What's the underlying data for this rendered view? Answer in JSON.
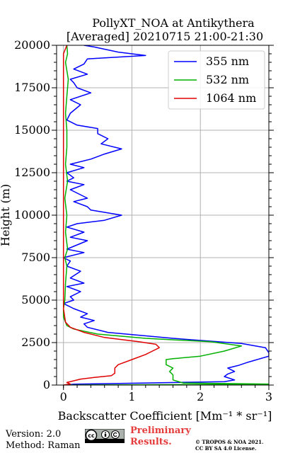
{
  "chart_data": {
    "type": "line",
    "title": "PollyXT_NOA at Antikythera",
    "subtitle": "[Averaged] 20210715 21:00-21:30",
    "xlabel": "Backscatter Coefficient [Mm⁻¹ * sr⁻¹]",
    "ylabel": "Height (m)",
    "xlim": [
      -0.1,
      3
    ],
    "ylim": [
      0,
      20000
    ],
    "x_ticks": [
      0,
      1,
      2,
      3
    ],
    "y_ticks": [
      0,
      2500,
      5000,
      7500,
      10000,
      12500,
      15000,
      17500,
      20000
    ],
    "grid": true,
    "legend_position": "top-right",
    "series": [
      {
        "name": "355 nm",
        "color": "#0000ff",
        "points": [
          [
            0.05,
            0
          ],
          [
            0.15,
            50
          ],
          [
            1.2,
            120
          ],
          [
            2.35,
            200
          ],
          [
            2.5,
            300
          ],
          [
            2.35,
            500
          ],
          [
            2.4,
            650
          ],
          [
            2.5,
            800
          ],
          [
            2.4,
            1000
          ],
          [
            2.55,
            1150
          ],
          [
            2.7,
            1350
          ],
          [
            3.0,
            1700
          ],
          [
            3.0,
            1900
          ],
          [
            2.95,
            2200
          ],
          [
            2.6,
            2450
          ],
          [
            1.6,
            2750
          ],
          [
            0.65,
            3100
          ],
          [
            0.35,
            3400
          ],
          [
            0.3,
            3600
          ],
          [
            0.45,
            3800
          ],
          [
            0.25,
            4000
          ],
          [
            0.35,
            4200
          ],
          [
            0.15,
            4500
          ],
          [
            0.05,
            4700
          ],
          [
            0.0,
            4800
          ],
          [
            0.15,
            5000
          ],
          [
            0.1,
            5200
          ],
          [
            0.25,
            5500
          ],
          [
            0.05,
            5800
          ],
          [
            0.3,
            6000
          ],
          [
            0.1,
            6300
          ],
          [
            0.25,
            6700
          ],
          [
            0.05,
            7000
          ],
          [
            0.1,
            7300
          ],
          [
            0.0,
            7500
          ],
          [
            0.3,
            7800
          ],
          [
            0.05,
            8000
          ],
          [
            0.35,
            8500
          ],
          [
            0.1,
            8700
          ],
          [
            0.3,
            9000
          ],
          [
            0.05,
            9300
          ],
          [
            0.2,
            9500
          ],
          [
            0.6,
            9700
          ],
          [
            0.85,
            10000
          ],
          [
            0.4,
            10300
          ],
          [
            0.35,
            10500
          ],
          [
            0.15,
            10800
          ],
          [
            0.35,
            11000
          ],
          [
            0.1,
            11500
          ],
          [
            0.3,
            11800
          ],
          [
            0.05,
            12000
          ],
          [
            0.15,
            12200
          ],
          [
            0.05,
            12500
          ],
          [
            0.3,
            12800
          ],
          [
            0.1,
            13000
          ],
          [
            0.4,
            13300
          ],
          [
            0.6,
            13600
          ],
          [
            0.85,
            13900
          ],
          [
            0.55,
            14200
          ],
          [
            0.65,
            14500
          ],
          [
            0.5,
            14800
          ],
          [
            0.5,
            15100
          ],
          [
            0.2,
            15300
          ],
          [
            0.05,
            15600
          ],
          [
            0.1,
            16000
          ],
          [
            0.25,
            16500
          ],
          [
            0.1,
            16800
          ],
          [
            0.4,
            17200
          ],
          [
            0.2,
            17500
          ],
          [
            0.15,
            17800
          ],
          [
            0.1,
            18000
          ],
          [
            0.35,
            18300
          ],
          [
            0.15,
            18600
          ],
          [
            0.3,
            18900
          ],
          [
            0.35,
            19200
          ],
          [
            1.2,
            19400
          ],
          [
            0.8,
            19600
          ],
          [
            0.45,
            19900
          ],
          [
            0.3,
            20000
          ]
        ]
      },
      {
        "name": "532 nm",
        "color": "#00b000",
        "points": [
          [
            0.05,
            0
          ],
          [
            2.9,
            40
          ],
          [
            3.0,
            60
          ],
          [
            1.75,
            120
          ],
          [
            1.6,
            300
          ],
          [
            1.6,
            600
          ],
          [
            1.55,
            800
          ],
          [
            1.6,
            1000
          ],
          [
            1.5,
            1200
          ],
          [
            1.5,
            1500
          ],
          [
            1.6,
            1550
          ],
          [
            2.0,
            1700
          ],
          [
            2.35,
            2000
          ],
          [
            2.6,
            2300
          ],
          [
            2.15,
            2550
          ],
          [
            1.2,
            2750
          ],
          [
            0.5,
            3000
          ],
          [
            0.15,
            3300
          ],
          [
            0.05,
            3500
          ],
          [
            0.0,
            4000
          ],
          [
            0.0,
            4500
          ],
          [
            0.02,
            5000
          ],
          [
            0.03,
            6000
          ],
          [
            0.05,
            7000
          ],
          [
            0.02,
            7500
          ],
          [
            0.06,
            8000
          ],
          [
            0.03,
            9000
          ],
          [
            0.05,
            10000
          ],
          [
            0.02,
            11000
          ],
          [
            0.06,
            12000
          ],
          [
            0.03,
            13000
          ],
          [
            0.05,
            14000
          ],
          [
            0.05,
            15000
          ],
          [
            0.03,
            16000
          ],
          [
            0.05,
            17000
          ],
          [
            0.07,
            18000
          ],
          [
            0.03,
            19000
          ],
          [
            0.06,
            19500
          ],
          [
            0.05,
            20000
          ]
        ]
      },
      {
        "name": "1064 nm",
        "color": "#e00000",
        "points": [
          [
            0.0,
            0
          ],
          [
            0.1,
            60
          ],
          [
            0.05,
            150
          ],
          [
            0.25,
            350
          ],
          [
            0.45,
            450
          ],
          [
            0.7,
            550
          ],
          [
            0.75,
            700
          ],
          [
            0.75,
            1000
          ],
          [
            0.8,
            1200
          ],
          [
            1.0,
            1500
          ],
          [
            1.2,
            1800
          ],
          [
            1.3,
            2000
          ],
          [
            1.4,
            2200
          ],
          [
            1.35,
            2400
          ],
          [
            1.1,
            2550
          ],
          [
            0.6,
            2800
          ],
          [
            0.3,
            3100
          ],
          [
            0.1,
            3400
          ],
          [
            0.03,
            3700
          ],
          [
            0.0,
            4500
          ],
          [
            0.0,
            6000
          ],
          [
            0.0,
            8000
          ],
          [
            0.0,
            10000
          ],
          [
            0.0,
            12000
          ],
          [
            0.0,
            14000
          ],
          [
            0.0,
            16000
          ],
          [
            0.0,
            18000
          ],
          [
            0.0,
            19500
          ],
          [
            0.05,
            20000
          ]
        ]
      }
    ]
  },
  "footer": {
    "version": "Version: 2.0",
    "method": "Method: Raman",
    "preliminary_line1": "Preliminary",
    "preliminary_line2": "Results.",
    "copyright_line1": "© TROPOS & NOA 2021.",
    "copyright_line2": "CC BY SA 4.0 License."
  }
}
